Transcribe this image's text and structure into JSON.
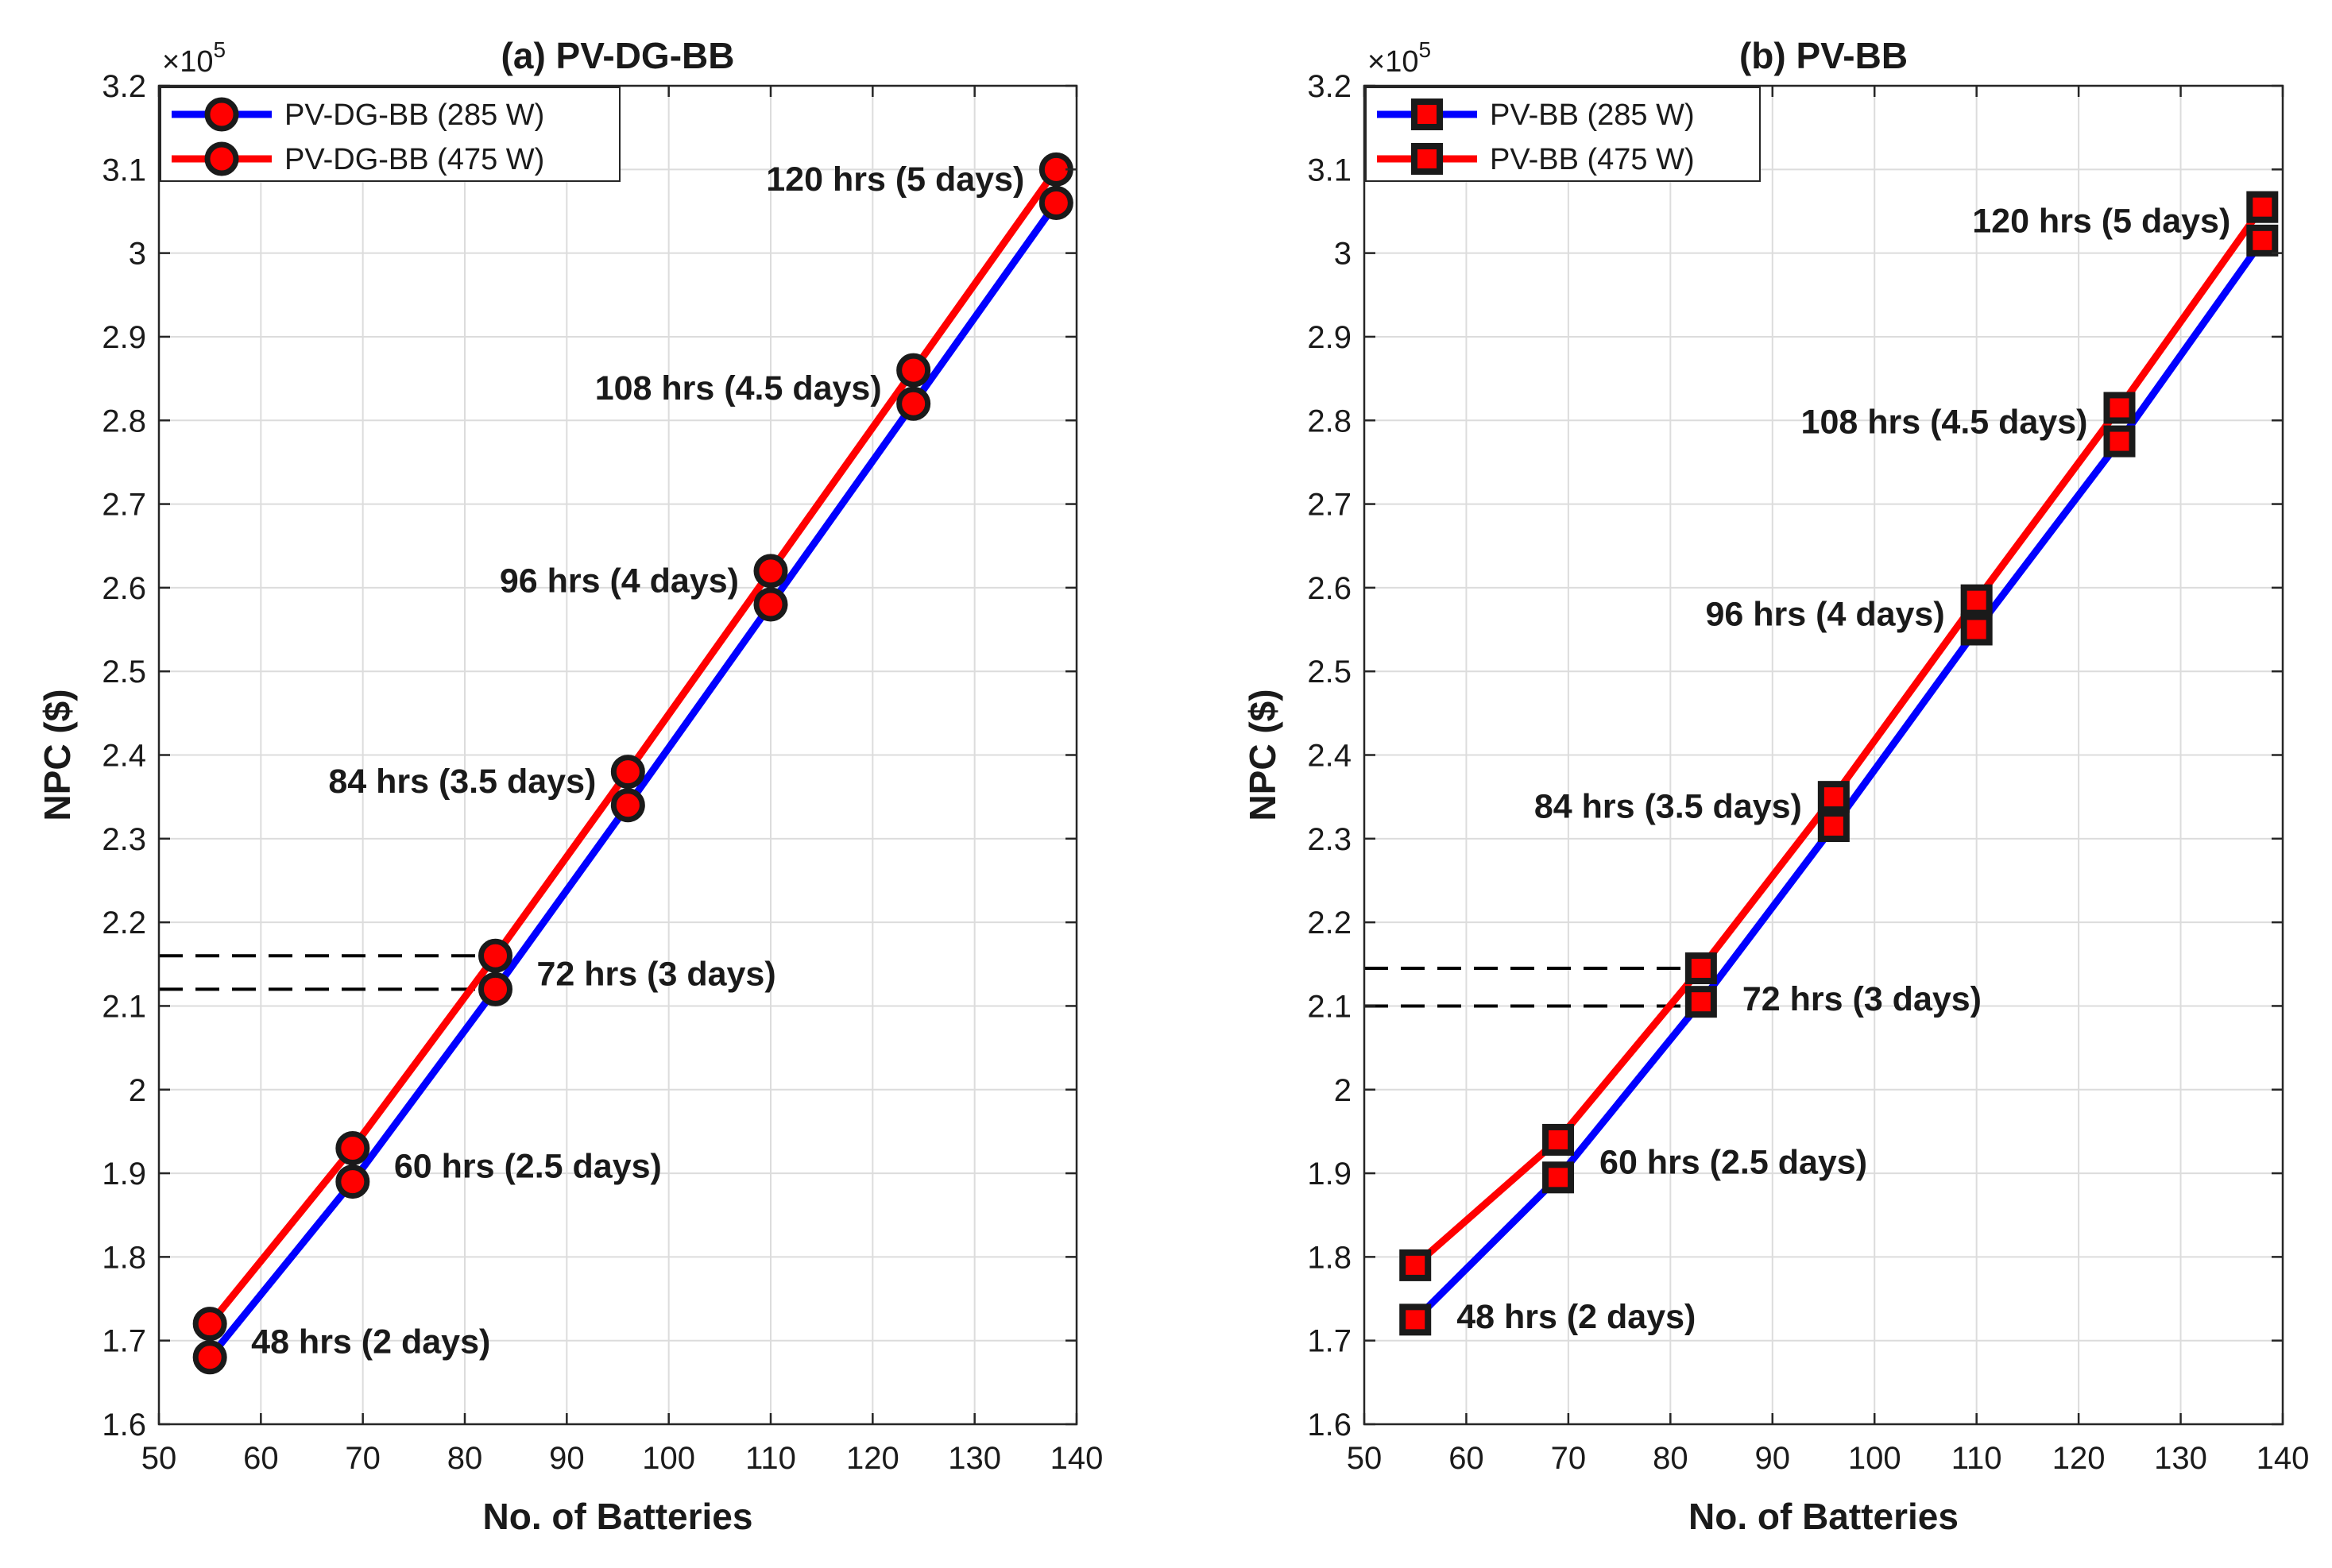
{
  "chart_data": [
    {
      "type": "line",
      "title": "(a) PV-DG-BB",
      "xlabel": "No. of Batteries",
      "ylabel": "NPC ($)",
      "y_multiplier": "×10",
      "y_exponent": "5",
      "xlim": [
        50,
        140
      ],
      "ylim": [
        1.6,
        3.2
      ],
      "xticks": [
        50,
        60,
        70,
        80,
        90,
        100,
        110,
        120,
        130,
        140
      ],
      "yticks": [
        1.6,
        1.7,
        1.8,
        1.9,
        2,
        2.1,
        2.2,
        2.3,
        2.4,
        2.5,
        2.6,
        2.7,
        2.8,
        2.9,
        3,
        3.1,
        3.2
      ],
      "ytick_labels": [
        "1.6",
        "1.7",
        "1.8",
        "1.9",
        "2",
        "2.1",
        "2.2",
        "2.3",
        "2.4",
        "2.5",
        "2.6",
        "2.7",
        "2.8",
        "2.9",
        "3",
        "3.1",
        "3.2"
      ],
      "xtick_labels": [
        "50",
        "60",
        "70",
        "80",
        "90",
        "100",
        "110",
        "120",
        "130",
        "140"
      ],
      "grid": true,
      "legend_position": "top-left",
      "marker": "circle",
      "x": [
        55,
        69,
        83,
        96,
        110,
        124,
        138
      ],
      "series": [
        {
          "name": "PV-DG-BB (285 W)",
          "color": "#0000ff",
          "values": [
            1.68,
            1.89,
            2.12,
            2.34,
            2.58,
            2.82,
            3.06
          ]
        },
        {
          "name": "PV-DG-BB (475 W)",
          "color": "#ff0000",
          "values": [
            1.72,
            1.93,
            2.16,
            2.38,
            2.62,
            2.86,
            3.1
          ]
        }
      ],
      "reference_lines": [
        2.16,
        2.12
      ],
      "reference_x_end": 83,
      "annotations": [
        {
          "text": "48 hrs (2 days)",
          "x": 55,
          "y": 1.7,
          "align": "right-of"
        },
        {
          "text": "60 hrs (2.5 days)",
          "x": 69,
          "y": 1.91,
          "align": "right-of"
        },
        {
          "text": "72 hrs (3 days)",
          "x": 83,
          "y": 2.14,
          "align": "right-of"
        },
        {
          "text": "84 hrs (3.5 days)",
          "x": 96,
          "y": 2.37,
          "align": "left-of"
        },
        {
          "text": "96 hrs (4 days)",
          "x": 110,
          "y": 2.61,
          "align": "left-of"
        },
        {
          "text": "108 hrs (4.5 days)",
          "x": 124,
          "y": 2.84,
          "align": "left-of"
        },
        {
          "text": "120 hrs (5 days)",
          "x": 138,
          "y": 3.09,
          "align": "left-of"
        }
      ]
    },
    {
      "type": "line",
      "title": "(b) PV-BB",
      "xlabel": "No. of Batteries",
      "ylabel": "NPC ($)",
      "y_multiplier": "×10",
      "y_exponent": "5",
      "xlim": [
        50,
        140
      ],
      "ylim": [
        1.6,
        3.2
      ],
      "xticks": [
        50,
        60,
        70,
        80,
        90,
        100,
        110,
        120,
        130,
        140
      ],
      "yticks": [
        1.6,
        1.7,
        1.8,
        1.9,
        2,
        2.1,
        2.2,
        2.3,
        2.4,
        2.5,
        2.6,
        2.7,
        2.8,
        2.9,
        3,
        3.1,
        3.2
      ],
      "ytick_labels": [
        "1.6",
        "1.7",
        "1.8",
        "1.9",
        "2",
        "2.1",
        "2.2",
        "2.3",
        "2.4",
        "2.5",
        "2.6",
        "2.7",
        "2.8",
        "2.9",
        "3",
        "3.1",
        "3.2"
      ],
      "xtick_labels": [
        "50",
        "60",
        "70",
        "80",
        "90",
        "100",
        "110",
        "120",
        "130",
        "140"
      ],
      "grid": true,
      "legend_position": "top-left",
      "marker": "square",
      "x": [
        55,
        69,
        83,
        96,
        110,
        124,
        138
      ],
      "series": [
        {
          "name": "PV-BB (285 W)",
          "color": "#0000ff",
          "values": [
            1.725,
            1.895,
            2.105,
            2.315,
            2.55,
            2.775,
            3.015
          ]
        },
        {
          "name": "PV-BB (475 W)",
          "color": "#ff0000",
          "values": [
            1.79,
            1.94,
            2.145,
            2.35,
            2.585,
            2.815,
            3.055
          ]
        }
      ],
      "reference_lines": [
        2.145,
        2.1
      ],
      "reference_x_end": 83,
      "annotations": [
        {
          "text": "48 hrs (2 days)",
          "x": 55,
          "y": 1.73,
          "align": "right-of"
        },
        {
          "text": "60 hrs (2.5 days)",
          "x": 69,
          "y": 1.915,
          "align": "right-of"
        },
        {
          "text": "72 hrs (3 days)",
          "x": 83,
          "y": 2.11,
          "align": "right-of"
        },
        {
          "text": "84 hrs (3.5 days)",
          "x": 96,
          "y": 2.34,
          "align": "left-of"
        },
        {
          "text": "96 hrs (4 days)",
          "x": 110,
          "y": 2.57,
          "align": "left-of"
        },
        {
          "text": "108 hrs (4.5 days)",
          "x": 124,
          "y": 2.8,
          "align": "left-of"
        },
        {
          "text": "120 hrs (5 days)",
          "x": 138,
          "y": 3.04,
          "align": "left-of"
        }
      ]
    }
  ]
}
